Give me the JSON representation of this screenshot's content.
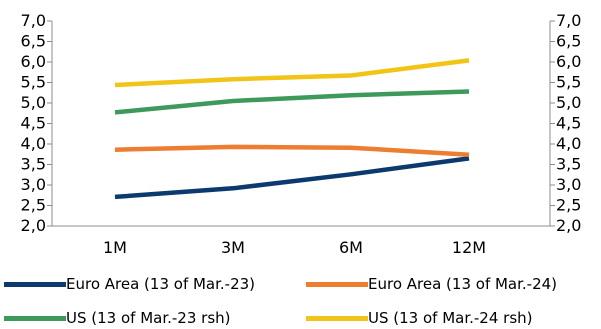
{
  "chart_data": {
    "type": "line",
    "categories": [
      "1M",
      "3M",
      "6M",
      "12M"
    ],
    "y_left": {
      "range": [
        2.0,
        7.0
      ],
      "ticks": [
        "2,0",
        "2,5",
        "3,0",
        "3,5",
        "4,0",
        "4,5",
        "5,0",
        "5,5",
        "6,0",
        "6,5",
        "7,0"
      ]
    },
    "y_right": {
      "range": [
        2.0,
        7.0
      ],
      "ticks": [
        "2,0",
        "2,5",
        "3,0",
        "3,5",
        "4,0",
        "4,5",
        "5,0",
        "5,5",
        "6,0",
        "6,5",
        "7,0"
      ]
    },
    "grid": false,
    "legend_position": "bottom",
    "series": [
      {
        "name": "Euro Area (13 of Mar.-23)",
        "color": "#0d3a6e",
        "axis": "left",
        "values": [
          2.71,
          2.92,
          3.26,
          3.65
        ]
      },
      {
        "name": "Euro Area (13 of Mar.-24)",
        "color": "#ed7d31",
        "axis": "left",
        "values": [
          3.86,
          3.93,
          3.91,
          3.74
        ]
      },
      {
        "name": "US (13 of Mar.-23 rsh)",
        "color": "#3d9a5b",
        "axis": "right",
        "values": [
          4.77,
          5.05,
          5.19,
          5.28
        ]
      },
      {
        "name": "US (13 of Mar.-24 rsh)",
        "color": "#f2c418",
        "axis": "right",
        "values": [
          5.44,
          5.58,
          5.67,
          6.04
        ]
      }
    ]
  }
}
